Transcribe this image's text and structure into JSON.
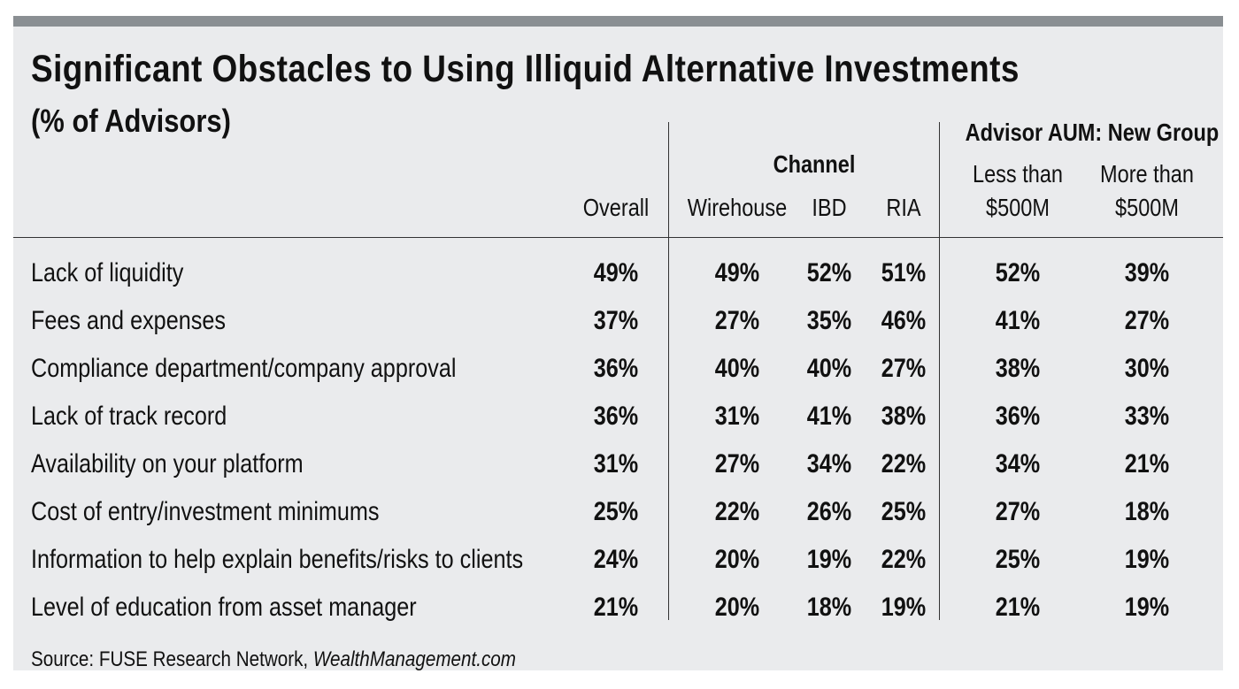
{
  "colors": {
    "panel_bg": "#eaebed",
    "top_bar": "#8a8f93",
    "text": "#111111",
    "rule": "#333333"
  },
  "header": {
    "title": "Significant Obstacles to Using Illiquid Alternative Investments",
    "subtitle": "(% of Advisors)",
    "group_channel": "Channel",
    "group_aum": "Advisor AUM: New Group"
  },
  "chart_data": {
    "type": "table",
    "title": "Significant Obstacles to Using Illiquid Alternative Investments",
    "subtitle": "(% of Advisors)",
    "column_groups": [
      {
        "name": "",
        "columns": [
          "Overall"
        ]
      },
      {
        "name": "Channel",
        "columns": [
          "Wirehouse",
          "IBD",
          "RIA"
        ]
      },
      {
        "name": "Advisor AUM: New Group",
        "columns": [
          "Less than $500M",
          "More than $500M"
        ]
      }
    ],
    "columns": [
      {
        "line1": "",
        "line2": "Overall"
      },
      {
        "line1": "",
        "line2": "Wirehouse"
      },
      {
        "line1": "",
        "line2": "IBD"
      },
      {
        "line1": "",
        "line2": "RIA"
      },
      {
        "line1": "Less than",
        "line2": "$500M"
      },
      {
        "line1": "More than",
        "line2": "$500M"
      }
    ],
    "rows": [
      {
        "label": "Lack of liquidity",
        "values": [
          "49%",
          "49%",
          "52%",
          "51%",
          "52%",
          "39%"
        ]
      },
      {
        "label": "Fees and expenses",
        "values": [
          "37%",
          "27%",
          "35%",
          "46%",
          "41%",
          "27%"
        ]
      },
      {
        "label": "Compliance department/company approval",
        "values": [
          "36%",
          "40%",
          "40%",
          "27%",
          "38%",
          "30%"
        ]
      },
      {
        "label": "Lack of track record",
        "values": [
          "36%",
          "31%",
          "41%",
          "38%",
          "36%",
          "33%"
        ]
      },
      {
        "label": "Availability on your platform",
        "values": [
          "31%",
          "27%",
          "34%",
          "22%",
          "34%",
          "21%"
        ]
      },
      {
        "label": "Cost of entry/investment minimums",
        "values": [
          "25%",
          "22%",
          "26%",
          "25%",
          "27%",
          "18%"
        ]
      },
      {
        "label": "Information to help explain benefits/risks to clients",
        "values": [
          "24%",
          "20%",
          "19%",
          "22%",
          "25%",
          "19%"
        ]
      },
      {
        "label": "Level of education from asset manager",
        "values": [
          "21%",
          "20%",
          "18%",
          "19%",
          "21%",
          "19%"
        ]
      }
    ]
  },
  "footer": {
    "source_prefix": "Source: FUSE Research Network, ",
    "source_italic": "WealthManagement.com"
  }
}
